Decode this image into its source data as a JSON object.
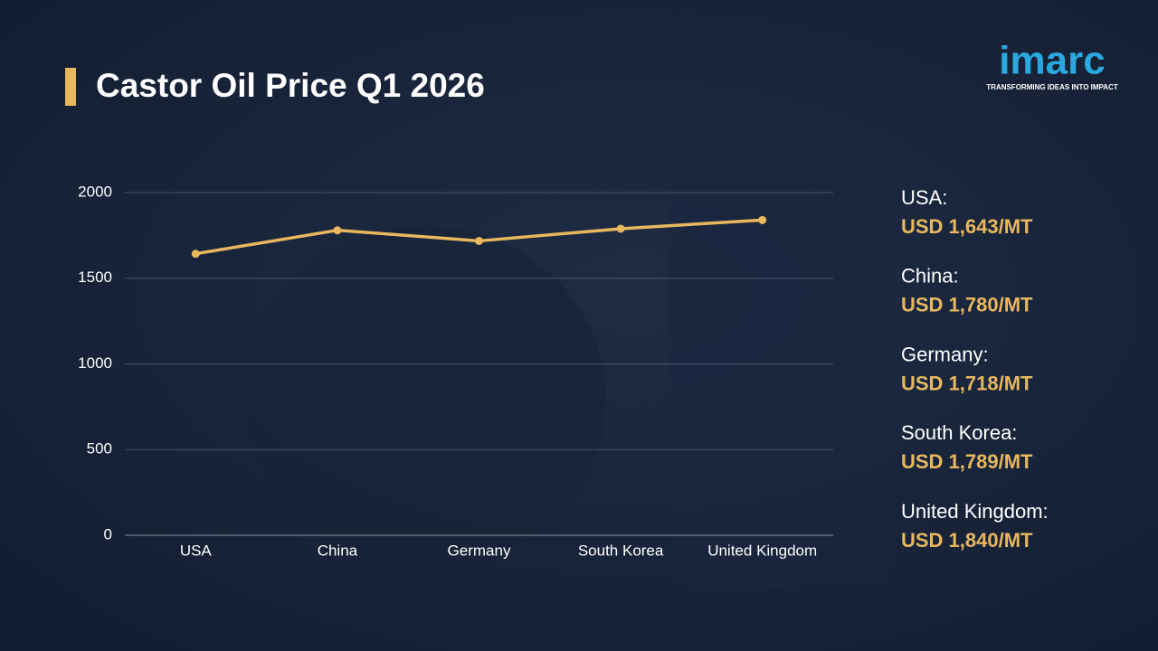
{
  "chart_data": {
    "type": "line",
    "title": "Castor Oil Price Q1 2026",
    "categories": [
      "USA",
      "China",
      "Germany",
      "South Korea",
      "United Kingdom"
    ],
    "values": [
      1643,
      1780,
      1718,
      1789,
      1840
    ],
    "value_labels": [
      "USD 1,643/MT",
      "USD 1,780/MT",
      "USD 1,718/MT",
      "USD 1,789/MT",
      "USD 1,840/MT"
    ],
    "legend_labels": [
      "USA:",
      "China:",
      "Germany:",
      "South Korea:",
      "United Kingdom:"
    ],
    "color": "#e8b75e",
    "ylim": [
      0,
      2000
    ],
    "yticks": [
      0,
      500,
      1000,
      1500,
      2000
    ],
    "grid": true
  },
  "logo": {
    "name": "imarc",
    "tagline": "TRANSFORMING IDEAS INTO IMPACT"
  }
}
